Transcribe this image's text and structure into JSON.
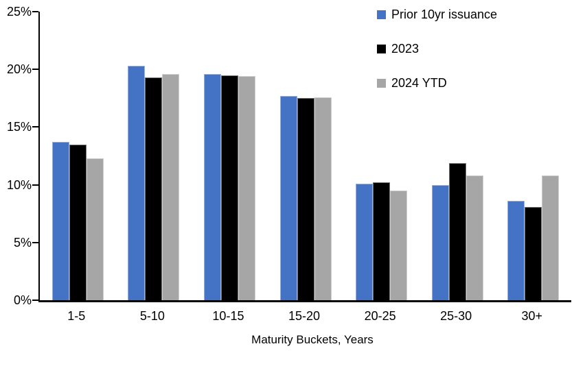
{
  "chart_data": {
    "type": "bar",
    "title": "",
    "xlabel": "Maturity Buckets, Years",
    "ylabel": "",
    "ylim": [
      0,
      25
    ],
    "ytick_step": 5,
    "ytick_labels": [
      "0%",
      "5%",
      "10%",
      "15%",
      "20%",
      "25%"
    ],
    "grid": false,
    "legend_position": "top-right",
    "categories": [
      "1-5",
      "5-10",
      "10-15",
      "15-20",
      "20-25",
      "25-30",
      "30+"
    ],
    "series": [
      {
        "name": "Prior 10yr issuance",
        "color": "#4472C4",
        "values": [
          13.7,
          20.3,
          19.6,
          17.7,
          10.1,
          10.0,
          8.6
        ]
      },
      {
        "name": "2023",
        "color": "#000000",
        "values": [
          13.5,
          19.3,
          19.5,
          17.5,
          10.2,
          11.9,
          8.1
        ]
      },
      {
        "name": "2024 YTD",
        "color": "#A6A6A6",
        "values": [
          12.3,
          19.6,
          19.4,
          17.6,
          9.5,
          10.8,
          10.8
        ]
      }
    ]
  }
}
